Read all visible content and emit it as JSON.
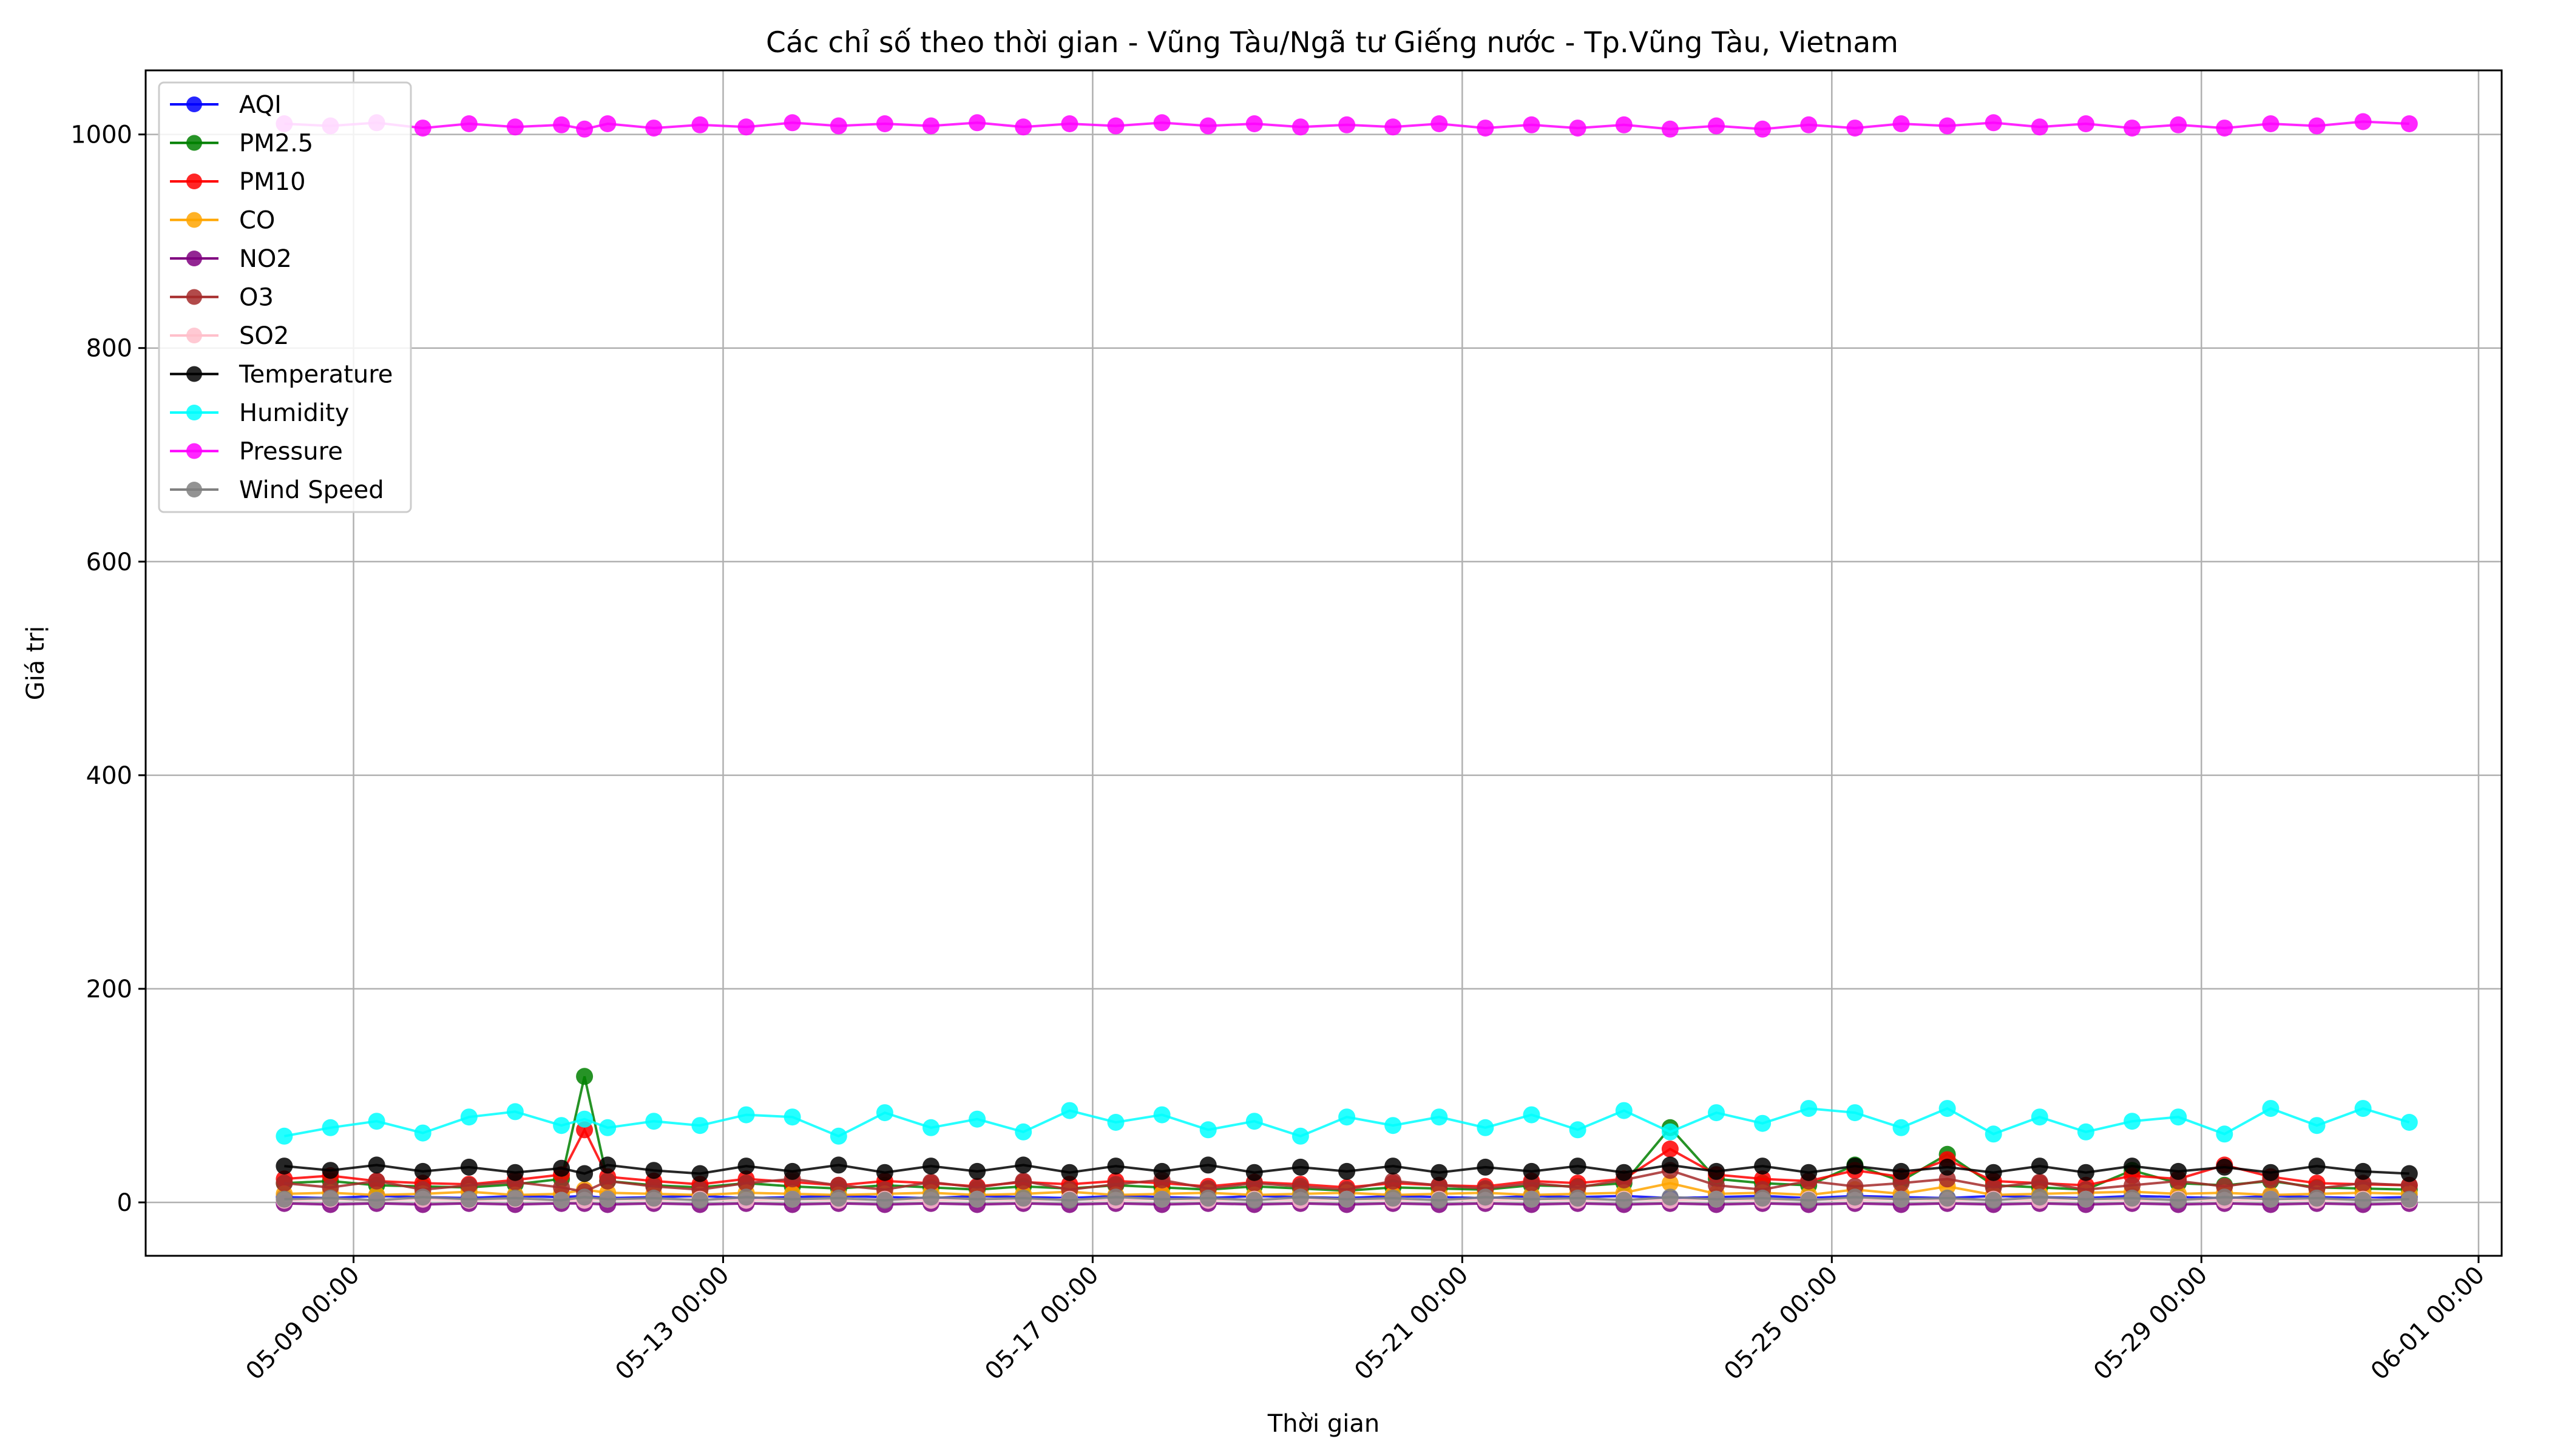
{
  "chart_data": {
    "type": "line",
    "title": "Các chỉ số theo thời gian - Vũng Tàu/Ngã tư Giếng nước - Tp.Vũng Tàu, Vietnam",
    "xlabel": "Thời gian",
    "ylabel": "Giá trị",
    "xlim": [
      "2025-05-06T18:00",
      "2025-06-01T06:00"
    ],
    "ylim": [
      -50,
      1060
    ],
    "x_ticks": [
      "05-09 00:00",
      "05-13 00:00",
      "05-17 00:00",
      "05-21 00:00",
      "05-25 00:00",
      "05-29 00:00",
      "06-01 00:00"
    ],
    "y_ticks": [
      0,
      200,
      400,
      600,
      800,
      1000
    ],
    "grid": true,
    "legend_position": "upper left",
    "markers": true,
    "x": [
      "2025-05-08T06:00",
      "2025-05-08T18:00",
      "2025-05-09T06:00",
      "2025-05-09T18:00",
      "2025-05-10T06:00",
      "2025-05-10T18:00",
      "2025-05-11T06:00",
      "2025-05-11T12:00",
      "2025-05-11T18:00",
      "2025-05-12T06:00",
      "2025-05-12T18:00",
      "2025-05-13T06:00",
      "2025-05-13T18:00",
      "2025-05-14T06:00",
      "2025-05-14T18:00",
      "2025-05-15T06:00",
      "2025-05-15T18:00",
      "2025-05-16T06:00",
      "2025-05-16T18:00",
      "2025-05-17T06:00",
      "2025-05-17T18:00",
      "2025-05-18T06:00",
      "2025-05-18T18:00",
      "2025-05-19T06:00",
      "2025-05-19T18:00",
      "2025-05-20T06:00",
      "2025-05-20T18:00",
      "2025-05-21T06:00",
      "2025-05-21T18:00",
      "2025-05-22T06:00",
      "2025-05-22T18:00",
      "2025-05-23T06:00",
      "2025-05-23T18:00",
      "2025-05-24T06:00",
      "2025-05-24T18:00",
      "2025-05-25T06:00",
      "2025-05-25T18:00",
      "2025-05-26T06:00",
      "2025-05-26T18:00",
      "2025-05-27T06:00",
      "2025-05-27T18:00",
      "2025-05-28T06:00",
      "2025-05-28T18:00",
      "2025-05-29T06:00",
      "2025-05-29T18:00",
      "2025-05-30T06:00",
      "2025-05-30T18:00",
      "2025-05-31T06:00"
    ],
    "series": [
      {
        "name": "AQI",
        "color": "#0000ff",
        "values": [
          5,
          4,
          6,
          5,
          4,
          6,
          5,
          6,
          4,
          5,
          6,
          4,
          5,
          6,
          5,
          4,
          6,
          5,
          4,
          6,
          5,
          4,
          6,
          5,
          4,
          6,
          5,
          4,
          6,
          5,
          6,
          4,
          5,
          6,
          4,
          6,
          5,
          4,
          6,
          5,
          4,
          6,
          5,
          4,
          6,
          5,
          4,
          5
        ]
      },
      {
        "name": "PM2.5",
        "color": "#008000",
        "values": [
          18,
          20,
          16,
          15,
          14,
          17,
          22,
          118,
          20,
          16,
          14,
          18,
          15,
          13,
          16,
          14,
          12,
          15,
          13,
          16,
          14,
          12,
          15,
          13,
          11,
          14,
          13,
          12,
          16,
          15,
          18,
          70,
          22,
          18,
          16,
          35,
          20,
          45,
          16,
          14,
          12,
          30,
          18,
          16,
          20,
          14,
          13,
          12
        ]
      },
      {
        "name": "PM10",
        "color": "#ff0000",
        "values": [
          22,
          25,
          20,
          18,
          17,
          21,
          26,
          68,
          24,
          20,
          17,
          22,
          19,
          16,
          20,
          18,
          15,
          19,
          17,
          20,
          18,
          15,
          19,
          17,
          14,
          18,
          16,
          15,
          20,
          18,
          22,
          50,
          26,
          22,
          20,
          30,
          24,
          40,
          20,
          18,
          16,
          25,
          22,
          35,
          24,
          18,
          17,
          16
        ]
      },
      {
        "name": "CO",
        "color": "#ffa500",
        "values": [
          8,
          9,
          7,
          8,
          10,
          7,
          8,
          12,
          9,
          8,
          7,
          9,
          8,
          7,
          8,
          9,
          7,
          8,
          10,
          7,
          8,
          9,
          7,
          8,
          9,
          7,
          8,
          9,
          7,
          8,
          9,
          18,
          8,
          9,
          7,
          12,
          8,
          15,
          7,
          8,
          9,
          10,
          8,
          9,
          7,
          8,
          9,
          8
        ]
      },
      {
        "name": "NO2",
        "color": "#800080",
        "values": [
          -1,
          -2,
          -1,
          -2,
          -1,
          -2,
          -1,
          -1,
          -2,
          -1,
          -2,
          -1,
          -2,
          -1,
          -2,
          -1,
          -2,
          -1,
          -2,
          -1,
          -2,
          -1,
          -2,
          -1,
          -2,
          -1,
          -2,
          -1,
          -2,
          -1,
          -2,
          -1,
          -2,
          -1,
          -2,
          -1,
          -2,
          -1,
          -2,
          -1,
          -2,
          -1,
          -2,
          -1,
          -2,
          -1,
          -2,
          -1
        ]
      },
      {
        "name": "O3",
        "color": "#a52a2a",
        "values": [
          18,
          14,
          20,
          12,
          16,
          19,
          14,
          10,
          20,
          15,
          12,
          18,
          22,
          16,
          12,
          19,
          14,
          20,
          12,
          17,
          21,
          13,
          18,
          15,
          12,
          20,
          16,
          13,
          18,
          14,
          21,
          30,
          16,
          12,
          20,
          15,
          18,
          22,
          14,
          19,
          12,
          16,
          20,
          15,
          21,
          13,
          18,
          16
        ]
      },
      {
        "name": "SO2",
        "color": "#ffc0cb",
        "values": [
          2,
          3,
          2,
          3,
          2,
          3,
          2,
          2,
          3,
          2,
          3,
          2,
          3,
          2,
          3,
          2,
          3,
          2,
          3,
          2,
          3,
          2,
          3,
          2,
          3,
          2,
          3,
          2,
          3,
          2,
          3,
          2,
          3,
          2,
          3,
          2,
          3,
          2,
          3,
          2,
          3,
          2,
          3,
          2,
          3,
          2,
          3,
          2
        ]
      },
      {
        "name": "Temperature",
        "color": "#000000",
        "values": [
          34,
          30,
          35,
          29,
          33,
          28,
          32,
          27,
          35,
          30,
          27,
          34,
          29,
          35,
          28,
          34,
          29,
          35,
          28,
          34,
          29,
          35,
          28,
          33,
          29,
          34,
          28,
          33,
          29,
          34,
          28,
          35,
          29,
          34,
          28,
          34,
          29,
          33,
          28,
          34,
          28,
          34,
          29,
          33,
          28,
          34,
          29,
          27
        ]
      },
      {
        "name": "Humidity",
        "color": "#00ffff",
        "values": [
          62,
          70,
          76,
          65,
          80,
          85,
          72,
          78,
          70,
          76,
          72,
          82,
          80,
          62,
          84,
          70,
          78,
          66,
          86,
          75,
          82,
          68,
          76,
          62,
          80,
          72,
          80,
          70,
          82,
          68,
          86,
          66,
          84,
          74,
          88,
          84,
          70,
          88,
          64,
          80,
          66,
          76,
          80,
          64,
          88,
          72,
          88,
          75
        ]
      },
      {
        "name": "Pressure",
        "color": "#ff00ff",
        "values": [
          1010,
          1008,
          1011,
          1006,
          1010,
          1007,
          1009,
          1005,
          1010,
          1006,
          1009,
          1007,
          1011,
          1008,
          1010,
          1008,
          1011,
          1007,
          1010,
          1008,
          1011,
          1008,
          1010,
          1007,
          1009,
          1007,
          1010,
          1006,
          1009,
          1006,
          1009,
          1005,
          1008,
          1005,
          1009,
          1006,
          1010,
          1008,
          1011,
          1007,
          1010,
          1006,
          1009,
          1006,
          1010,
          1008,
          1012,
          1010
        ]
      },
      {
        "name": "Wind Speed",
        "color": "#808080",
        "values": [
          3,
          4,
          2,
          5,
          3,
          4,
          2,
          5,
          3,
          4,
          2,
          5,
          3,
          4,
          2,
          5,
          3,
          4,
          2,
          5,
          3,
          4,
          2,
          5,
          3,
          4,
          2,
          5,
          3,
          4,
          2,
          5,
          3,
          4,
          2,
          5,
          3,
          4,
          2,
          5,
          3,
          4,
          2,
          5,
          3,
          4,
          2,
          3
        ]
      }
    ]
  }
}
